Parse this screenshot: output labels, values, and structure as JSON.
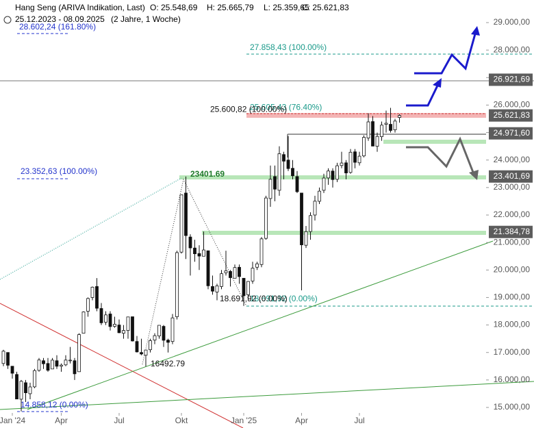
{
  "chart_data": {
    "type": "candlestick",
    "title": "Hang Seng (ARIVA Indikation, Last)",
    "ohlc": [
      "O: 25.548,69",
      "H: 25.665,79",
      "L: 25.359,65",
      "C: 25.621,83"
    ],
    "subtitle": "25.12.2023 - 08.09.2025",
    "period": "(2 Jahre, 1 Woche)",
    "open": [
      16600,
      17000,
      16500,
      16200,
      15300,
      15900,
      15500,
      15750,
      16350,
      16700,
      16600,
      16400,
      16700,
      16500,
      16550,
      16700,
      16700,
      16300,
      17700,
      18500,
      19000,
      19400,
      18600,
      18100,
      18400,
      17950,
      18000,
      17700,
      17800,
      18300,
      17400,
      17000,
      16900,
      17100,
      17450,
      17600,
      17950,
      17450,
      17400,
      18300,
      20650,
      22800,
      21200,
      20800,
      20600,
      20500,
      20700,
      19400,
      19200,
      19400,
      19900,
      19950,
      19700,
      20100,
      19700,
      19100,
      19600,
      20100,
      20200,
      21150,
      22600,
      23400,
      22900,
      24200,
      24000,
      23700,
      23400,
      22800,
      20900,
      21400,
      22000,
      22500,
      22900,
      23350,
      23600,
      23300,
      23800,
      23900,
      23550,
      24300,
      23900,
      24150,
      24800,
      25400,
      24500,
      24850,
      25300,
      25300,
      25100,
      25548.69
    ],
    "high": [
      17100,
      17000,
      16500,
      16300,
      16000,
      16000,
      15900,
      16400,
      16800,
      16800,
      16800,
      16800,
      16900,
      16600,
      16900,
      17200,
      16800,
      17700,
      18500,
      19000,
      19400,
      19706,
      18800,
      18500,
      18500,
      18300,
      18200,
      18000,
      18300,
      18300,
      17600,
      17500,
      17100,
      17500,
      17700,
      17900,
      18000,
      17500,
      18400,
      20700,
      22700,
      23401.69,
      21300,
      21100,
      20900,
      21400,
      20700,
      19800,
      19500,
      20000,
      20700,
      20000,
      20200,
      20200,
      19700,
      19600,
      20300,
      20300,
      21200,
      22700,
      23800,
      23800,
      24500,
      24300,
      24874,
      24000,
      23600,
      22800,
      21600,
      22100,
      22700,
      23000,
      23500,
      23700,
      23700,
      23900,
      24300,
      24000,
      24400,
      24400,
      24300,
      24900,
      25700,
      25600,
      25000,
      25400,
      25800,
      25900,
      25500,
      25665.79
    ],
    "low": [
      16500,
      16400,
      16050,
      15300,
      14858.12,
      15200,
      15300,
      15700,
      16300,
      16400,
      16300,
      16400,
      16400,
      16300,
      16500,
      16600,
      16000,
      16300,
      17700,
      18300,
      18900,
      18500,
      18000,
      18000,
      17800,
      17900,
      17700,
      17500,
      17500,
      17400,
      17000,
      16900,
      16492.79,
      17000,
      17300,
      17500,
      17200,
      17000,
      17300,
      18200,
      20600,
      20400,
      19800,
      20300,
      20000,
      20500,
      19300,
      19100,
      18900,
      19300,
      19800,
      19400,
      19700,
      19500,
      18691.92,
      18900,
      19500,
      20000,
      20100,
      21100,
      22300,
      22500,
      22700,
      23300,
      23600,
      23300,
      22800,
      19260,
      20800,
      21100,
      21800,
      22400,
      22800,
      23100,
      23000,
      23200,
      23700,
      23300,
      23500,
      23700,
      23800,
      24100,
      24700,
      24500,
      24300,
      24700,
      25000,
      25000,
      25000,
      25359.65
    ],
    "close": [
      17047,
      16535,
      16245,
      15308,
      15952,
      15533,
      15747,
      16340,
      16726,
      16589,
      16353,
      16721,
      16499,
      16541,
      16724,
      16721,
      16224,
      17651,
      18476,
      18964,
      19376,
      18609,
      18079,
      18367,
      17942,
      18028,
      17719,
      17800,
      18293,
      17418,
      17021,
      16945,
      17090,
      17430,
      17612,
      17989,
      17444,
      17369,
      18258,
      20632,
      22736,
      21252,
      20804,
      20590,
      20506,
      20728,
      19426,
      19230,
      19424,
      19866,
      19971,
      19721,
      20090,
      19760,
      19064,
      19584,
      20067,
      20225,
      21133,
      22620,
      23300,
      22941,
      24231,
      23959,
      23690,
      23427,
      22849,
      20915,
      21396,
      21980,
      22504,
      22868,
      23345,
      23601,
      23290,
      23792,
      23892,
      23530,
      24284,
      23917,
      24140,
      24826,
      25388,
      24508,
      24859,
      25270,
      25339,
      25077,
      25418,
      25621.83
    ],
    "ylim": [
      14800,
      29400
    ],
    "yticks": [
      {
        "value": 15000,
        "label": "15.000,00"
      },
      {
        "value": 16000,
        "label": "16.000,00"
      },
      {
        "value": 17000,
        "label": "17.000,00"
      },
      {
        "value": 18000,
        "label": "18.000,00"
      },
      {
        "value": 19000,
        "label": "19.000,00"
      },
      {
        "value": 20000,
        "label": "20.000,00"
      },
      {
        "value": 21000,
        "label": "21.000,00"
      },
      {
        "value": 22000,
        "label": "22.000,00"
      },
      {
        "value": 23000,
        "label": "23.000,00"
      },
      {
        "value": 24000,
        "label": "24.000,00"
      },
      {
        "value": 25000,
        "label": "25.000,00"
      },
      {
        "value": 26000,
        "label": "26.000,00"
      },
      {
        "value": 27000,
        "label": "27.000,00"
      },
      {
        "value": 28000,
        "label": "28.000,00"
      },
      {
        "value": 29000,
        "label": "29.000,00"
      }
    ],
    "xticks": [
      {
        "value": 2,
        "label": "Jan '24"
      },
      {
        "value": 13,
        "label": "Apr"
      },
      {
        "value": 26,
        "label": "Jul"
      },
      {
        "value": 40,
        "label": "Okt"
      },
      {
        "value": 54,
        "label": "Jan '25"
      },
      {
        "value": 67,
        "label": "Apr"
      },
      {
        "value": 80,
        "label": "Jul"
      }
    ],
    "levels": [
      {
        "value": 26921.69,
        "label": "26.921,69"
      },
      {
        "value": 25621.83,
        "label": "25.621,83"
      },
      {
        "value": 24971.6,
        "label": "24.971,60"
      },
      {
        "value": 23401.69,
        "label": "23.401,69"
      },
      {
        "value": 21384.78,
        "label": "21.384,78"
      }
    ],
    "annotations": [
      {
        "value": 28602.24,
        "label": "28.602,24 (161.80%)",
        "color": "#2233cc"
      },
      {
        "value": 27858.43,
        "label": "27.858,43 (100.00%)",
        "color": "#1a9a8a"
      },
      {
        "value": 25605.43,
        "label": "25.605,43 (76.40%)",
        "color": "#1a9a8a"
      },
      {
        "value": 25600.82,
        "label": "25.600,82 (100.00%)",
        "color": "#111111"
      },
      {
        "value": 23352.63,
        "label": "23.352,63 (100.00%)",
        "color": "#2233cc"
      },
      {
        "value": 23401.69,
        "label": "23401.69",
        "color": "#1f7a2a"
      },
      {
        "value": 18691.92,
        "label": "18.691,92 (0.00%)",
        "color": "#1a9a8a"
      },
      {
        "value": 18691.92,
        "label": "18.691,92 (0.00%)",
        "color": "#111111"
      },
      {
        "value": 14858.12,
        "label": "14.858,12 (0.00%)",
        "color": "#2233cc"
      },
      {
        "value": 16492.79,
        "label": "16492.79",
        "color": "#111111"
      }
    ]
  }
}
